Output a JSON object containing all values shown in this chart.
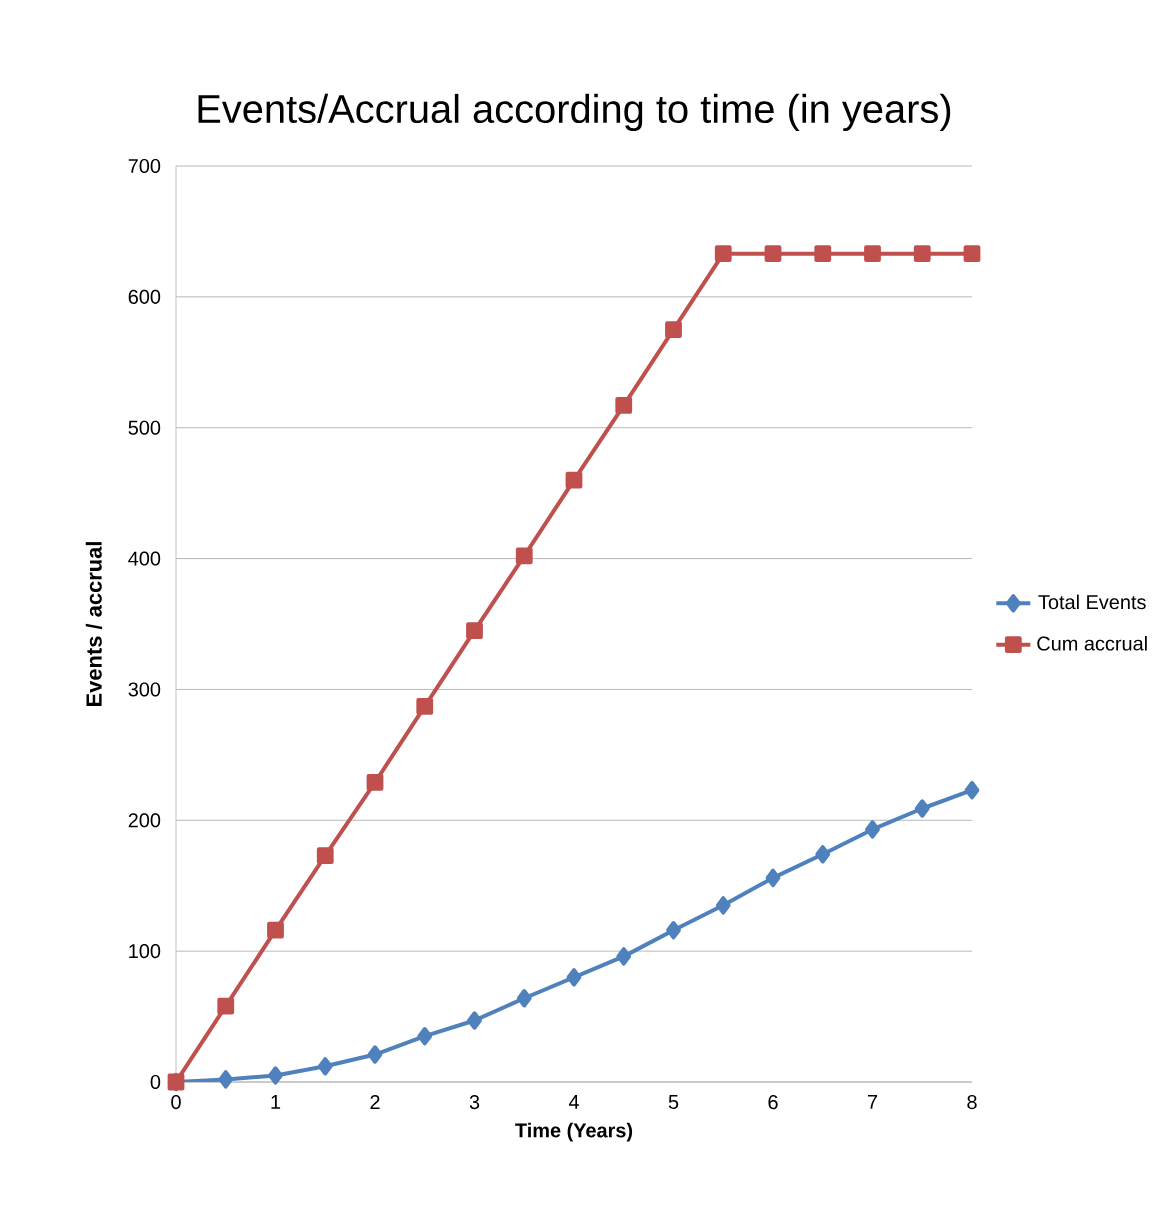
{
  "chart_data": {
    "type": "line",
    "title": "Events/Accrual  according to time (in years)",
    "xlabel": "Time (Years)",
    "ylabel": "Events / accrual",
    "x": [
      0,
      0.5,
      1,
      1.5,
      2,
      2.5,
      3,
      3.5,
      4,
      4.5,
      5,
      5.5,
      6,
      6.5,
      7,
      7.5,
      8
    ],
    "series": [
      {
        "name": "Total Events",
        "color": "#4f81bd",
        "marker": "diamond",
        "values": [
          0,
          2,
          5,
          12,
          21,
          35,
          47,
          64,
          80,
          96,
          116,
          135,
          156,
          174,
          193,
          209,
          223
        ]
      },
      {
        "name": "Cum accrual",
        "color": "#c0504d",
        "marker": "square",
        "values": [
          0,
          58,
          116,
          173,
          229,
          287,
          345,
          402,
          460,
          517,
          575,
          633,
          633,
          633,
          633,
          633,
          633
        ]
      }
    ],
    "xlim": [
      0,
      8
    ],
    "ylim": [
      0,
      700
    ],
    "xticks": [
      0,
      1,
      2,
      3,
      4,
      5,
      6,
      7,
      8
    ],
    "yticks": [
      0,
      100,
      200,
      300,
      400,
      500,
      600,
      700
    ],
    "grid": "y",
    "legend": "right",
    "line_style": "solid"
  }
}
